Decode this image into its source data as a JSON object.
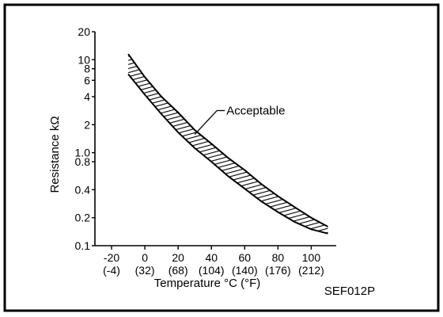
{
  "chart_data": {
    "type": "area",
    "title": "",
    "xlabel": "Temperature °C (°F)",
    "ylabel": "Resistance kΩ",
    "y_scale": "log",
    "xlim": [
      -30,
      115
    ],
    "ylim": [
      0.1,
      20
    ],
    "grid": false,
    "x_ticks": [
      {
        "c": -20,
        "label": "-20",
        "sub": "(-4)"
      },
      {
        "c": 0,
        "label": "0",
        "sub": "(32)"
      },
      {
        "c": 20,
        "label": "20",
        "sub": "(68)"
      },
      {
        "c": 40,
        "label": "40",
        "sub": "(104)"
      },
      {
        "c": 60,
        "label": "60",
        "sub": "(140)"
      },
      {
        "c": 80,
        "label": "80",
        "sub": "(176)"
      },
      {
        "c": 100,
        "label": "100",
        "sub": "(212)"
      }
    ],
    "y_ticks": [
      {
        "v": 20,
        "label": "20"
      },
      {
        "v": 10,
        "label": "10"
      },
      {
        "v": 8,
        "label": "8"
      },
      {
        "v": 6,
        "label": "6"
      },
      {
        "v": 4,
        "label": "4"
      },
      {
        "v": 2,
        "label": "2"
      },
      {
        "v": 1.0,
        "label": "1.0"
      },
      {
        "v": 0.8,
        "label": "0.8"
      },
      {
        "v": 0.4,
        "label": "0.4"
      },
      {
        "v": 0.2,
        "label": "0.2"
      },
      {
        "v": 0.1,
        "label": "0.1"
      }
    ],
    "series": [
      {
        "name": "Acceptable",
        "x": [
          -10,
          0,
          10,
          20,
          30,
          40,
          50,
          60,
          70,
          80,
          90,
          100,
          110
        ],
        "upper": [
          11.5,
          6.5,
          4.0,
          2.7,
          1.75,
          1.25,
          0.88,
          0.65,
          0.46,
          0.34,
          0.26,
          0.2,
          0.16
        ],
        "lower": [
          7.0,
          4.2,
          2.6,
          1.65,
          1.12,
          0.8,
          0.56,
          0.41,
          0.3,
          0.23,
          0.18,
          0.15,
          0.135
        ]
      }
    ],
    "annotations": [
      {
        "text": "Acceptable",
        "points_to_x": 30
      }
    ],
    "figure_id": "SEF012P"
  }
}
